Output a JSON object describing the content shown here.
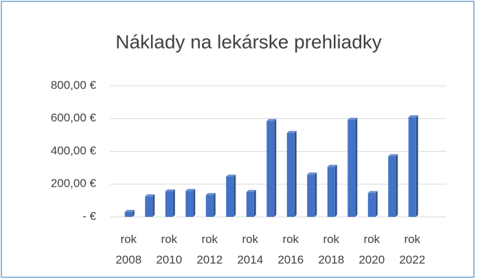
{
  "chart_data": {
    "type": "bar",
    "title": "Náklady na lekárske prehliadky",
    "categories": [
      "rok 2008",
      null,
      "rok 2010",
      null,
      "rok 2012",
      null,
      "rok 2014",
      null,
      "rok 2016",
      null,
      "rok 2018",
      null,
      "rok 2020",
      null,
      "rok 2022"
    ],
    "values": [
      30,
      125,
      155,
      158,
      133,
      245,
      152,
      585,
      512,
      258,
      305,
      592,
      145,
      370,
      608
    ],
    "color": "#4472c4",
    "ylim": [
      0,
      800
    ],
    "yticks": [
      {
        "value": 0,
        "label": "-  €"
      },
      {
        "value": 200,
        "label": "200,00 €"
      },
      {
        "value": 400,
        "label": "400,00 €"
      },
      {
        "value": 600,
        "label": "600,00 €"
      },
      {
        "value": 800,
        "label": "800,00 €"
      }
    ],
    "grid": true
  }
}
